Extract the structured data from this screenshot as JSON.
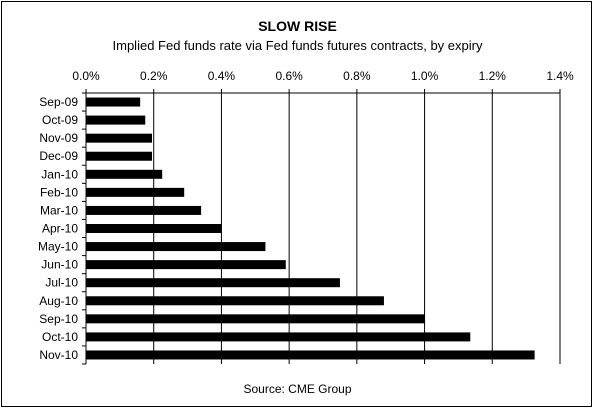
{
  "chart_data": {
    "type": "bar",
    "orientation": "horizontal",
    "title": "SLOW RISE",
    "subtitle": "Implied Fed funds rate via Fed funds futures contracts, by expiry",
    "source": "Source: CME Group",
    "categories": [
      "Sep-09",
      "Oct-09",
      "Nov-09",
      "Dec-09",
      "Jan-10",
      "Feb-10",
      "Mar-10",
      "Apr-10",
      "May-10",
      "Jun-10",
      "Jul-10",
      "Aug-10",
      "Sep-10",
      "Oct-10",
      "Nov-10"
    ],
    "values": [
      0.16,
      0.175,
      0.195,
      0.195,
      0.225,
      0.29,
      0.34,
      0.4,
      0.53,
      0.59,
      0.75,
      0.88,
      1.0,
      1.135,
      1.325
    ],
    "x_ticks": [
      "0.0%",
      "0.2%",
      "0.4%",
      "0.6%",
      "0.8%",
      "1.0%",
      "1.2%",
      "1.4%"
    ],
    "xlim": [
      0,
      1.4
    ],
    "x_axis_position": "top",
    "unit": "%",
    "gridlines": "vertical",
    "legend": "none",
    "bar_color": "#000000",
    "grid_color": "#000000"
  }
}
